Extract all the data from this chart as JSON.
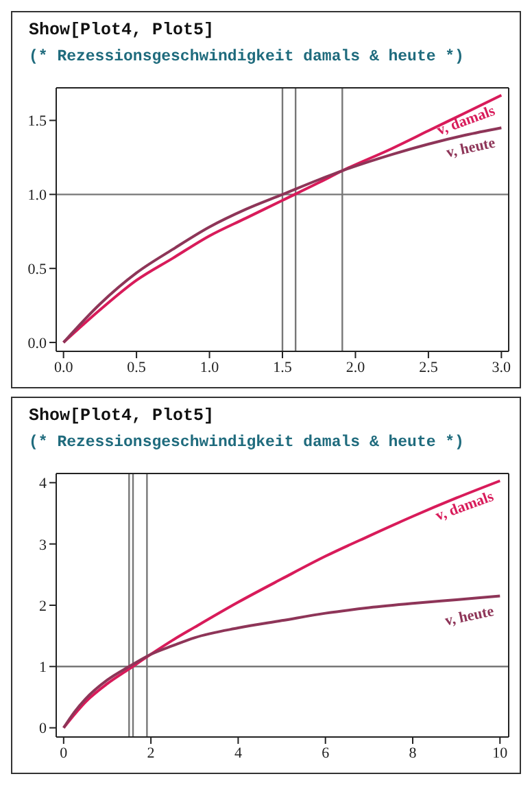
{
  "chart_data": [
    {
      "type": "line",
      "title": "Show[Plot4, Plot5]",
      "subtitle": "(* Rezessionsgeschwindigkeit damals & heute *)",
      "x": [
        0,
        0.25,
        0.5,
        0.75,
        1,
        1.25,
        1.5,
        1.75,
        1.91,
        2.25,
        2.5,
        2.75,
        3
      ],
      "series": [
        {
          "name": "v, damals",
          "color": "#d81b5a",
          "values": [
            0,
            0.22,
            0.42,
            0.57,
            0.72,
            0.84,
            0.96,
            1.08,
            1.16,
            1.31,
            1.43,
            1.55,
            1.67
          ]
        },
        {
          "name": "v, heute",
          "color": "#8e3558",
          "values": [
            0,
            0.26,
            0.47,
            0.63,
            0.78,
            0.9,
            1.0,
            1.1,
            1.16,
            1.27,
            1.34,
            1.4,
            1.45
          ]
        }
      ],
      "xlim": [
        -0.05,
        3.05
      ],
      "ylim": [
        -0.06,
        1.72
      ],
      "xticks": [
        {
          "value": 0,
          "label": "0.0"
        },
        0.5,
        {
          "value": 1,
          "label": "1.0"
        },
        1.5,
        {
          "value": 2,
          "label": "2.0"
        },
        2.5,
        {
          "value": 3,
          "label": "3.0"
        }
      ],
      "yticks": [
        {
          "value": 0,
          "label": "0.0"
        },
        0.5,
        {
          "value": 1,
          "label": "1.0"
        },
        1.5
      ],
      "ref_lines": [
        {
          "axis": "x",
          "value": 1.5,
          "color": "#777777"
        },
        {
          "axis": "x",
          "value": 1.59,
          "color": "#777777"
        },
        {
          "axis": "x",
          "value": 1.91,
          "color": "#777777"
        },
        {
          "axis": "y",
          "value": 1,
          "color": "#777777"
        }
      ],
      "grid": false,
      "legend": false,
      "marker": "none",
      "line_style": "solid"
    },
    {
      "type": "line",
      "title": "Show[Plot4, Plot5]",
      "subtitle": "(* Rezessionsgeschwindigkeit damals & heute *)",
      "x": [
        0,
        0.25,
        0.5,
        1,
        1.5,
        2,
        2.5,
        3,
        4,
        5,
        6,
        7,
        8,
        9,
        10
      ],
      "series": [
        {
          "name": "v, damals",
          "color": "#d81b5a",
          "values": [
            0,
            0.22,
            0.42,
            0.72,
            0.96,
            1.2,
            1.43,
            1.64,
            2.05,
            2.43,
            2.8,
            3.13,
            3.45,
            3.75,
            4.03
          ]
        },
        {
          "name": "v, heute",
          "color": "#8e3558",
          "values": [
            0,
            0.26,
            0.47,
            0.78,
            1.0,
            1.2,
            1.34,
            1.47,
            1.63,
            1.75,
            1.87,
            1.96,
            2.03,
            2.09,
            2.15
          ]
        }
      ],
      "xlim": [
        -0.17,
        10.2
      ],
      "ylim": [
        -0.15,
        4.15
      ],
      "xticks": [
        0,
        2,
        4,
        6,
        8,
        10
      ],
      "yticks": [
        0,
        1,
        2,
        3,
        4
      ],
      "ref_lines": [
        {
          "axis": "x",
          "value": 1.5,
          "color": "#777777"
        },
        {
          "axis": "x",
          "value": 1.59,
          "color": "#777777"
        },
        {
          "axis": "x",
          "value": 1.91,
          "color": "#777777"
        },
        {
          "axis": "y",
          "value": 1,
          "color": "#777777"
        }
      ],
      "grid": false,
      "legend": false,
      "marker": "none",
      "line_style": "solid"
    }
  ]
}
